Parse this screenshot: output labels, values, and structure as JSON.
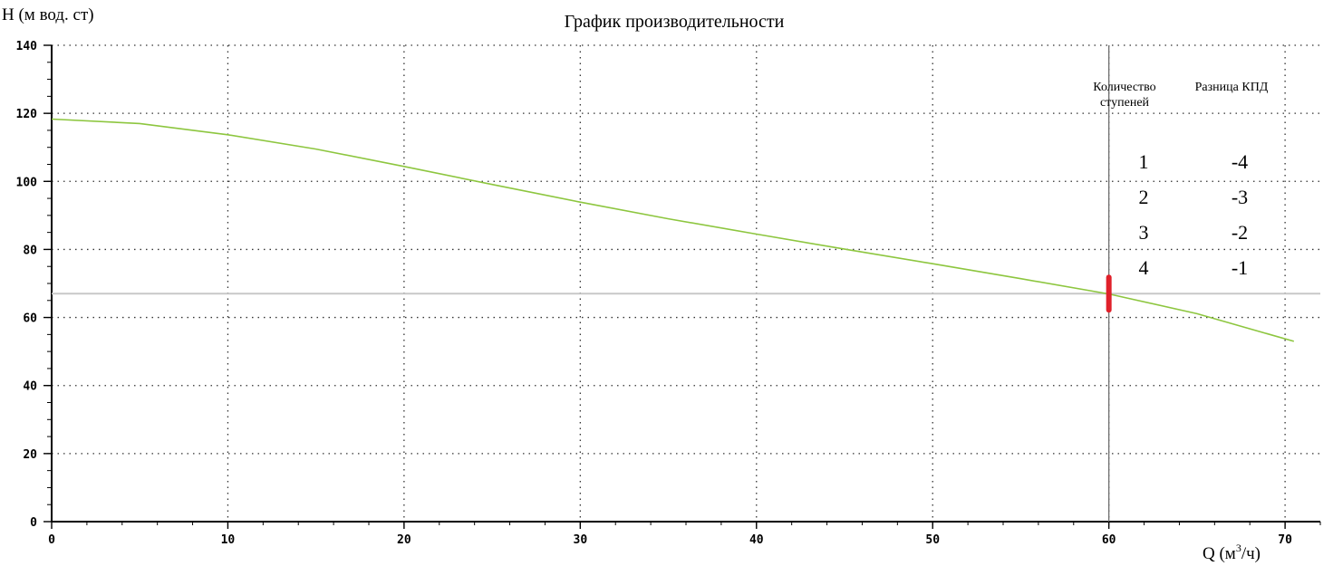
{
  "chart_data": {
    "type": "line",
    "title": "График производительности",
    "ylabel": "Н (м вод. ст)",
    "xlabel_prefix": "Q (м",
    "xlabel_sup": "3",
    "xlabel_suffix": "/ч)",
    "xlim": [
      0,
      72
    ],
    "ylim": [
      0,
      140
    ],
    "xticks": [
      0,
      10,
      20,
      30,
      40,
      50,
      60,
      70
    ],
    "yticks": [
      0,
      20,
      40,
      60,
      80,
      100,
      120,
      140
    ],
    "grid": true,
    "series": [
      {
        "color": "#8dc63f",
        "x": [
          0,
          5,
          10,
          15,
          20,
          25,
          30,
          35,
          40,
          45,
          50,
          55,
          60,
          65,
          70.5
        ],
        "y": [
          118.3,
          117,
          113.7,
          109.5,
          104.4,
          99.1,
          93.9,
          89,
          84.5,
          80.1,
          75.8,
          71.4,
          66.9,
          61.1,
          53
        ]
      }
    ],
    "operating_point": {
      "x": 60,
      "y": 67,
      "marker_color": "#e0202a",
      "hline_color": "#c8c8c8",
      "vline_color": "#6e6e6e"
    },
    "info_table": {
      "col1_header_line1": "Количество",
      "col1_header_line2": "ступеней",
      "col2_header": "Разница КПД",
      "rows": [
        {
          "stages": "1",
          "diff": "-4"
        },
        {
          "stages": "2",
          "diff": "-3"
        },
        {
          "stages": "3",
          "diff": "-2"
        },
        {
          "stages": "4",
          "diff": "-1"
        }
      ]
    }
  }
}
